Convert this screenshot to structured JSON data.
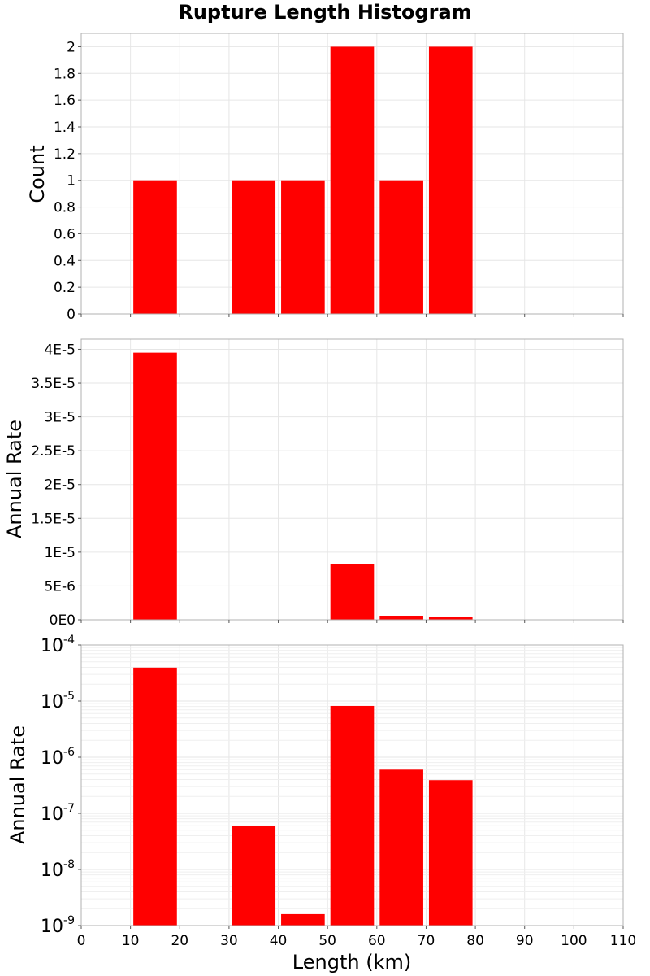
{
  "chart_data": {
    "type": "bar",
    "title": "Rupture Length Histogram",
    "xlabel": "Length (km)",
    "xlim": [
      0,
      110
    ],
    "x_ticks": [
      "0",
      "10",
      "20",
      "30",
      "40",
      "50",
      "60",
      "70",
      "80",
      "90",
      "100",
      "110"
    ],
    "bin_width": 10,
    "bar_color": "#ff0000",
    "panels": [
      {
        "ylabel": "Count",
        "yscale": "linear",
        "ylim": [
          0,
          2.1
        ],
        "y_ticks": [
          {
            "value": 0,
            "label": "0"
          },
          {
            "value": 0.2,
            "label": "0.2"
          },
          {
            "value": 0.4,
            "label": "0.4"
          },
          {
            "value": 0.6,
            "label": "0.6"
          },
          {
            "value": 0.8,
            "label": "0.8"
          },
          {
            "value": 1.0,
            "label": "1"
          },
          {
            "value": 1.2,
            "label": "1.2"
          },
          {
            "value": 1.4,
            "label": "1.4"
          },
          {
            "value": 1.6,
            "label": "1.6"
          },
          {
            "value": 1.8,
            "label": "1.8"
          },
          {
            "value": 2.0,
            "label": "2"
          }
        ],
        "bars": [
          {
            "x_start": 10,
            "x_end": 20,
            "value": 1
          },
          {
            "x_start": 30,
            "x_end": 40,
            "value": 1
          },
          {
            "x_start": 40,
            "x_end": 50,
            "value": 1
          },
          {
            "x_start": 50,
            "x_end": 60,
            "value": 2
          },
          {
            "x_start": 60,
            "x_end": 70,
            "value": 1
          },
          {
            "x_start": 70,
            "x_end": 80,
            "value": 2
          }
        ]
      },
      {
        "ylabel": "Annual Rate",
        "yscale": "linear",
        "ylim": [
          0,
          4.15e-05
        ],
        "y_ticks": [
          {
            "value": 0,
            "label": "0E0"
          },
          {
            "value": 5e-06,
            "label": "5E-6"
          },
          {
            "value": 1e-05,
            "label": "1E-5"
          },
          {
            "value": 1.5e-05,
            "label": "1.5E-5"
          },
          {
            "value": 2e-05,
            "label": "2E-5"
          },
          {
            "value": 2.5e-05,
            "label": "2.5E-5"
          },
          {
            "value": 3e-05,
            "label": "3E-5"
          },
          {
            "value": 3.5e-05,
            "label": "3.5E-5"
          },
          {
            "value": 4e-05,
            "label": "4E-5"
          }
        ],
        "bars": [
          {
            "x_start": 10,
            "x_end": 20,
            "value": 3.95e-05
          },
          {
            "x_start": 30,
            "x_end": 40,
            "value": 6e-08
          },
          {
            "x_start": 40,
            "x_end": 50,
            "value": 1.6e-09
          },
          {
            "x_start": 50,
            "x_end": 60,
            "value": 8.2e-06
          },
          {
            "x_start": 60,
            "x_end": 70,
            "value": 6e-07
          },
          {
            "x_start": 70,
            "x_end": 80,
            "value": 3.9e-07
          }
        ]
      },
      {
        "ylabel": "Annual Rate",
        "yscale": "log",
        "ylim": [
          1e-09,
          0.0001
        ],
        "y_ticks": [
          {
            "value": 1e-09,
            "base": "10",
            "exp": "-9"
          },
          {
            "value": 1e-08,
            "base": "10",
            "exp": "-8"
          },
          {
            "value": 1e-07,
            "base": "10",
            "exp": "-7"
          },
          {
            "value": 1e-06,
            "base": "10",
            "exp": "-6"
          },
          {
            "value": 1e-05,
            "base": "10",
            "exp": "-5"
          },
          {
            "value": 0.0001,
            "base": "10",
            "exp": "-4"
          }
        ],
        "bars": [
          {
            "x_start": 10,
            "x_end": 20,
            "value": 3.95e-05
          },
          {
            "x_start": 30,
            "x_end": 40,
            "value": 6e-08
          },
          {
            "x_start": 40,
            "x_end": 50,
            "value": 1.6e-09
          },
          {
            "x_start": 50,
            "x_end": 60,
            "value": 8.2e-06
          },
          {
            "x_start": 60,
            "x_end": 70,
            "value": 6e-07
          },
          {
            "x_start": 70,
            "x_end": 80,
            "value": 3.9e-07
          }
        ]
      }
    ]
  }
}
